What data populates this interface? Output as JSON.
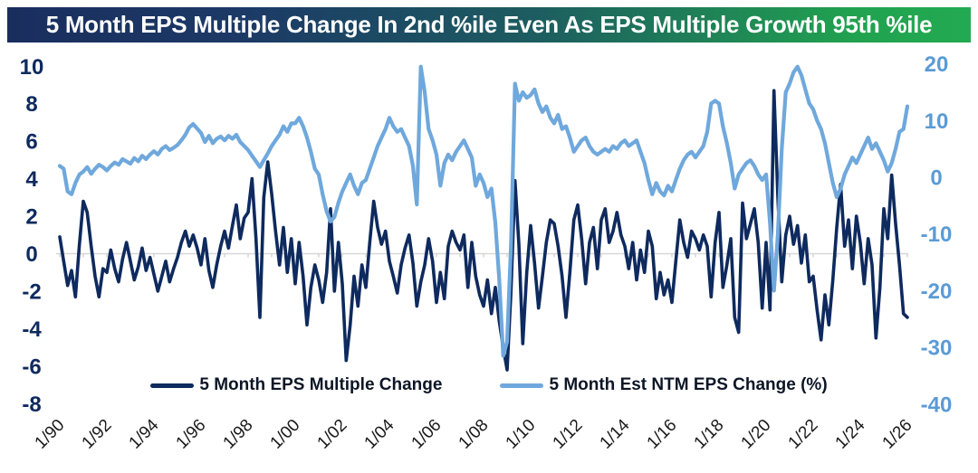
{
  "title": {
    "text": "5 Month EPS Multiple Change In 2nd %ile Even As EPS Multiple Growth 95th %ile"
  },
  "colors": {
    "title_gradient_left": "#1a2e5e",
    "title_gradient_right": "#21a24f",
    "navy_series": "#0e2a5e",
    "light_blue_series": "#6fa8dc",
    "left_axis_labels": "#0e2a5e",
    "right_axis_labels": "#5b9bd5",
    "x_axis_labels": "#1a1a1a",
    "zero_line": "#d8d8d8"
  },
  "chart_data": {
    "type": "line",
    "title": "5 Month EPS Multiple Change In 2nd %ile Even As EPS Multiple Growth 95th %ile",
    "grid": "zero-line-only",
    "legend_position": "bottom-center",
    "x_axis": {
      "labels": [
        "1/90",
        "1/92",
        "1/94",
        "1/96",
        "1/98",
        "1/00",
        "1/02",
        "1/04",
        "1/06",
        "1/08",
        "1/10",
        "1/12",
        "1/14",
        "1/16",
        "1/18",
        "1/20",
        "1/22",
        "1/24",
        "1/26"
      ],
      "start_year": 1990,
      "end_year": 2026,
      "label_every_years": 2,
      "tick_every_years": 1,
      "label_rotation_deg": -45
    },
    "left_axis": {
      "ticks": [
        10,
        8,
        6,
        4,
        2,
        0,
        -2,
        -4,
        -6,
        -8
      ],
      "range": [
        -8,
        10
      ],
      "series": "5 Month EPS Multiple Change"
    },
    "right_axis": {
      "ticks": [
        20,
        10,
        0,
        -10,
        -20,
        -30,
        -40
      ],
      "range": [
        -40,
        20
      ],
      "series": "5 Month Est NTM EPS Change (%)"
    },
    "series": [
      {
        "name": "5 Month EPS Multiple Change",
        "axis": "left",
        "color": "#0e2a5e",
        "x_start": 1990.0,
        "x_step_months": 2,
        "values": [
          0.9,
          -0.4,
          -1.7,
          -0.9,
          -2.3,
          0.5,
          2.8,
          2.2,
          0.4,
          -1.2,
          -2.3,
          -0.8,
          -1.0,
          0.2,
          -0.8,
          -1.5,
          -0.3,
          0.6,
          -0.4,
          -1.4,
          -0.7,
          0.3,
          -0.9,
          -0.2,
          -1.1,
          -2.0,
          -1.2,
          -0.4,
          -1.5,
          -0.8,
          -0.2,
          0.6,
          1.2,
          0.4,
          1.0,
          0.3,
          -0.6,
          0.8,
          -0.9,
          -1.8,
          -0.6,
          0.4,
          1.2,
          0.3,
          1.5,
          2.6,
          0.8,
          1.9,
          2.2,
          4.0,
          0.8,
          -3.4,
          3.0,
          4.9,
          3.2,
          1.2,
          -0.6,
          1.4,
          -1.0,
          0.8,
          -1.6,
          0.6,
          -1.2,
          -3.8,
          -1.8,
          -0.6,
          -1.4,
          -2.6,
          -1.0,
          2.4,
          -2.0,
          0.6,
          -1.6,
          -5.7,
          -3.8,
          -1.2,
          -2.8,
          -0.6,
          -1.8,
          0.6,
          2.8,
          1.4,
          0.5,
          1.2,
          -0.4,
          -1.2,
          -2.1,
          -0.6,
          0.3,
          1.0,
          -0.5,
          -2.8,
          -1.5,
          -0.6,
          0.8,
          -0.4,
          -2.6,
          -1.0,
          -2.4,
          0.4,
          1.2,
          0.6,
          0.2,
          1.0,
          -1.8,
          0.6,
          -1.2,
          -2.2,
          -2.8,
          -1.4,
          -3.2,
          -1.8,
          -3.6,
          -5.0,
          -6.2,
          -2.0,
          3.9,
          0.5,
          -4.8,
          -1.0,
          1.5,
          -0.5,
          -2.9,
          -1.2,
          0.6,
          1.8,
          1.6,
          0.4,
          -1.2,
          -3.4,
          -1.0,
          1.8,
          2.6,
          0.8,
          -1.6,
          0.6,
          1.4,
          -0.8,
          1.8,
          2.4,
          0.6,
          1.2,
          2.2,
          1.0,
          0.4,
          -0.8,
          0.6,
          -1.4,
          0.2,
          -1.0,
          1.2,
          0.4,
          -2.4,
          -1.0,
          -2.2,
          -1.4,
          -2.6,
          -0.4,
          1.8,
          0.6,
          -0.2,
          1.2,
          0.8,
          0.2,
          1.0,
          0.4,
          -2.3,
          0.6,
          2.2,
          -1.8,
          -0.6,
          0.8,
          -3.4,
          -4.2,
          2.7,
          0.8,
          1.6,
          2.4,
          0.6,
          -2.9,
          0.6,
          -3.0,
          8.7,
          3.0,
          -1.5,
          1.0,
          2.0,
          0.5,
          1.5,
          -0.5,
          1.0,
          -1.5,
          -1.2,
          -3.0,
          -4.6,
          -2.2,
          -3.8,
          -1.4,
          1.4,
          3.7,
          0.4,
          1.8,
          -0.8,
          2.0,
          0.6,
          -1.6,
          0.8,
          -0.6,
          -4.5,
          -1.8,
          2.4,
          0.8,
          4.2,
          1.6,
          -0.6,
          -3.2,
          -3.4
        ]
      },
      {
        "name": "5 Month Est NTM EPS Change (%)",
        "axis": "right",
        "color": "#6fa8dc",
        "x_start": 1990.0,
        "x_step_months": 2,
        "values": [
          2.0,
          1.5,
          -2.5,
          -3.0,
          -1.0,
          0.5,
          1.0,
          1.8,
          0.6,
          1.5,
          2.2,
          1.8,
          1.2,
          2.0,
          2.6,
          2.2,
          3.2,
          2.8,
          2.4,
          3.4,
          2.8,
          3.8,
          3.2,
          4.0,
          4.6,
          4.0,
          5.0,
          5.5,
          4.8,
          5.2,
          5.7,
          6.5,
          7.5,
          8.8,
          9.4,
          8.6,
          7.8,
          6.2,
          7.3,
          6.0,
          6.8,
          7.2,
          6.5,
          7.3,
          6.8,
          7.5,
          6.2,
          5.5,
          4.8,
          3.8,
          2.8,
          1.8,
          3.0,
          4.2,
          5.5,
          6.5,
          7.5,
          9.0,
          8.0,
          9.5,
          9.5,
          10.5,
          9.0,
          7.0,
          4.5,
          1.5,
          0.5,
          -3.0,
          -6.0,
          -7.8,
          -7.0,
          -4.5,
          -2.5,
          -1.0,
          0.5,
          -1.5,
          -3.0,
          -1.0,
          -0.5,
          1.5,
          3.5,
          5.5,
          7.0,
          8.5,
          10.5,
          9.0,
          8.0,
          8.5,
          7.0,
          5.5,
          2.0,
          -4.8,
          19.5,
          15.0,
          8.5,
          6.5,
          4.0,
          -1.5,
          2.5,
          4.0,
          3.0,
          4.5,
          5.5,
          6.5,
          5.0,
          3.5,
          -1.5,
          0.5,
          -1.0,
          -3.5,
          -2.0,
          -8.0,
          -18.0,
          -31.5,
          -29.0,
          -12.0,
          16.5,
          13.5,
          15.0,
          14.0,
          14.5,
          15.5,
          13.0,
          11.5,
          12.5,
          10.5,
          9.5,
          11.0,
          8.5,
          9.0,
          7.0,
          4.5,
          5.5,
          6.5,
          7.0,
          5.5,
          4.5,
          4.0,
          4.5,
          5.0,
          4.5,
          5.5,
          5.0,
          6.0,
          6.5,
          5.5,
          6.0,
          6.5,
          4.5,
          2.5,
          -0.5,
          -3.0,
          -1.0,
          -2.5,
          -3.2,
          -1.5,
          -2.5,
          -0.5,
          1.5,
          3.0,
          4.0,
          4.5,
          3.5,
          4.5,
          5.5,
          8.0,
          13.0,
          13.5,
          13.0,
          9.0,
          6.0,
          2.5,
          -2.0,
          0.5,
          1.5,
          2.5,
          3.0,
          2.0,
          0.5,
          -0.5,
          0.5,
          -8.0,
          -20.0,
          -10.0,
          5.0,
          15.0,
          16.5,
          18.5,
          19.5,
          18.0,
          15.5,
          13.0,
          12.0,
          10.0,
          8.5,
          6.0,
          2.5,
          -1.0,
          -3.5,
          -2.0,
          0.5,
          2.0,
          3.5,
          2.5,
          4.0,
          5.5,
          7.0,
          5.0,
          6.0,
          4.5,
          3.0,
          1.0,
          2.5,
          5.0,
          8.0,
          8.5,
          12.5
        ]
      }
    ]
  }
}
